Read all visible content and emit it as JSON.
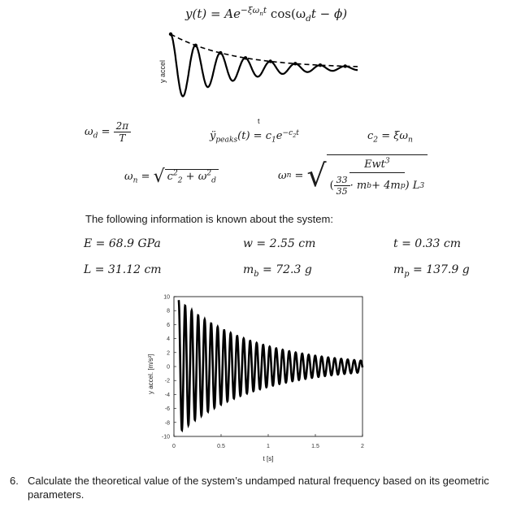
{
  "equations": {
    "main": "y(t) = Ae",
    "main_exp": "−ξω",
    "main_exp_sub": "n",
    "main_exp_t": "t",
    "main_cos": " cos(ω",
    "main_cos_sub": "d",
    "main_cos_rest": "t − ϕ)",
    "wd_lhs": "ω",
    "wd_lhs_sub": "d",
    "wd_num": "2π",
    "wd_den": "T",
    "ypeaks_lhs": "ÿ",
    "ypeaks_sub": "peaks",
    "ypeaks_rhs": "(t) = c",
    "ypeaks_c1sub": "1",
    "ypeaks_e": "e",
    "ypeaks_exp": "−c",
    "ypeaks_exp_sub": "2",
    "ypeaks_exp_t": "t",
    "c2": "c",
    "c2_sub": "2",
    "c2_rhs": " = ξω",
    "c2_rhs_sub": "n",
    "wn1_lhs": "ω",
    "wn1_sub": "n",
    "wn1_inner_c": "c",
    "wn1_inner_c_sup": "2",
    "wn1_inner_c_sub": "2",
    "wn1_inner_plus": " + ω",
    "wn1_inner_w_sup": "2",
    "wn1_inner_w_sub": "d",
    "wn2_lhs": "ω",
    "wn2_sub": "n",
    "wn2_num": "Ewt",
    "wn2_num_sup": "3",
    "wn2_frac_num": "33",
    "wn2_frac_den": "35",
    "wn2_den_rest": " · m",
    "wn2_mb_sub": "b",
    "wn2_plus": " + 4m",
    "wn2_mp_sub": "p",
    "wn2_L": ") L",
    "wn2_L_sup": "3"
  },
  "intro_text": "The following information is known about the system:",
  "parameters": {
    "E": "E = 68.9 GPa",
    "w": "w = 2.55 cm",
    "t": "t = 0.33 cm",
    "L": "L = 31.12 cm",
    "mb_lhs": "m",
    "mb_sub": "b",
    "mb_rhs": " = 72.3 g",
    "mp_lhs": "m",
    "mp_sub": "p",
    "mp_rhs": " = 137.9 g"
  },
  "question": {
    "number": "6.",
    "text_line1": "Calculate the theoretical value of the system’s undamped natural frequency based on its geometric",
    "text_line2": "parameters."
  },
  "chart_data": [
    {
      "type": "line",
      "title": "",
      "xlabel": "t",
      "ylabel": "y accel",
      "grid": false,
      "legend": "none",
      "series": [
        {
          "kind": "damped sinusoid"
        },
        {
          "kind": "dashed exponential envelope through peaks"
        }
      ]
    },
    {
      "type": "line",
      "title": "",
      "xlabel": "t [s]",
      "ylabel": "y accel. [m/s²]",
      "xlim": [
        0,
        2
      ],
      "ylim": [
        -10,
        10
      ],
      "xticks": [
        "0",
        "0.5",
        "1",
        "1.5",
        "2"
      ],
      "yticks": [
        "10",
        "8",
        "6",
        "4",
        "2",
        "0",
        "-2",
        "-4",
        "-6",
        "-8",
        "-10"
      ],
      "grid": false,
      "legend": "none",
      "series": [
        {
          "amplitude": 9.5,
          "decay_rate": 1.25,
          "frequency_hz": 14.5,
          "t_start": 0.05,
          "t_end": 2.0
        }
      ]
    }
  ]
}
